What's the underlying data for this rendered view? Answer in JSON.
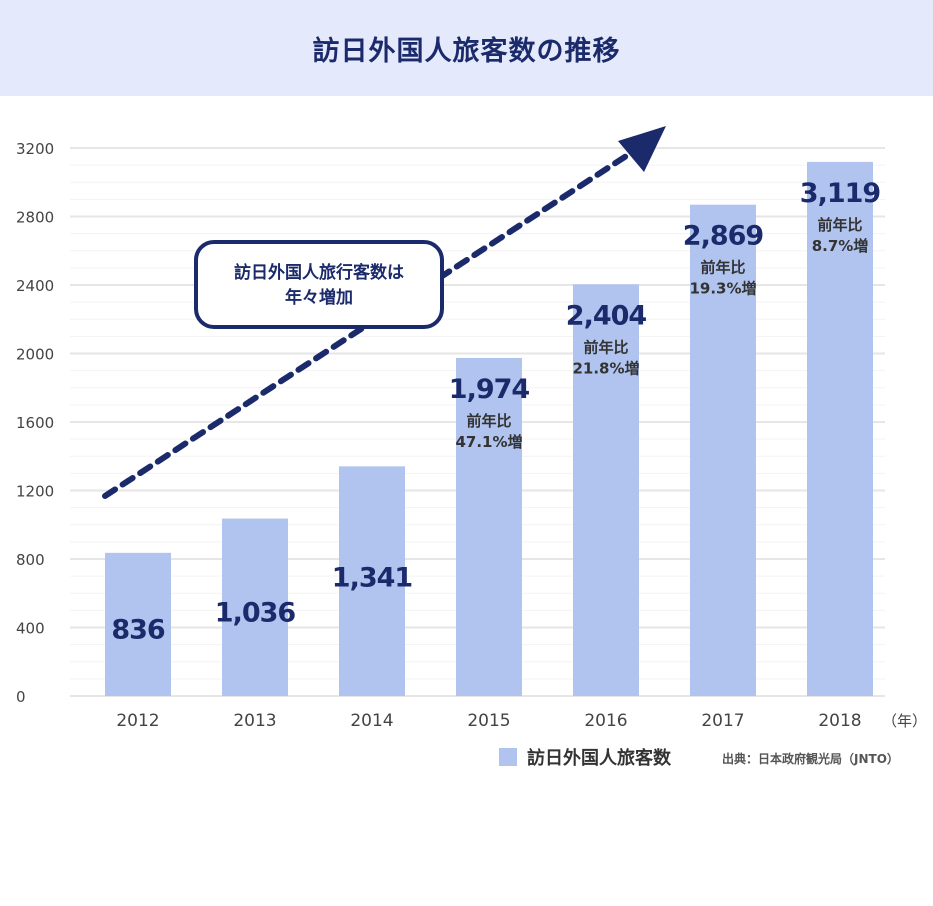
{
  "title": "訪日外国人旅客数の推移",
  "colors": {
    "bar": "#b0c4ef",
    "header_bg": "#e4e9fb",
    "accent": "#1b2a6b",
    "grid": "#eeeeee",
    "axis_text": "#444444"
  },
  "chart_data": {
    "type": "bar",
    "title": "訪日外国人旅客数の推移",
    "categories": [
      "2012",
      "2013",
      "2014",
      "2015",
      "2016",
      "2017",
      "2018"
    ],
    "x_unit": "（年）",
    "y_ticks": [
      "0",
      "400",
      "800",
      "1200",
      "1600",
      "2000",
      "2400",
      "2800",
      "3200"
    ],
    "ylim": [
      0,
      3200
    ],
    "grid": true,
    "series": [
      {
        "name": "訪日外国人旅客数",
        "values": [
          836,
          1036,
          1341,
          1974,
          2404,
          2869,
          3119
        ],
        "value_labels": [
          "836",
          "1,036",
          "1,341",
          "1,974",
          "2,404",
          "2,869",
          "3,119"
        ],
        "growth_labels": [
          "",
          "",
          "",
          "前年比\n47.1%増",
          "前年比\n21.8%増",
          "前年比\n19.3%増",
          "前年比\n8.7%増"
        ]
      }
    ],
    "annotation": "訪日外国人旅行客数は\n年々増加",
    "legend_position": "bottom-right"
  },
  "source": "出典：日本政府観光局（JNTO）"
}
